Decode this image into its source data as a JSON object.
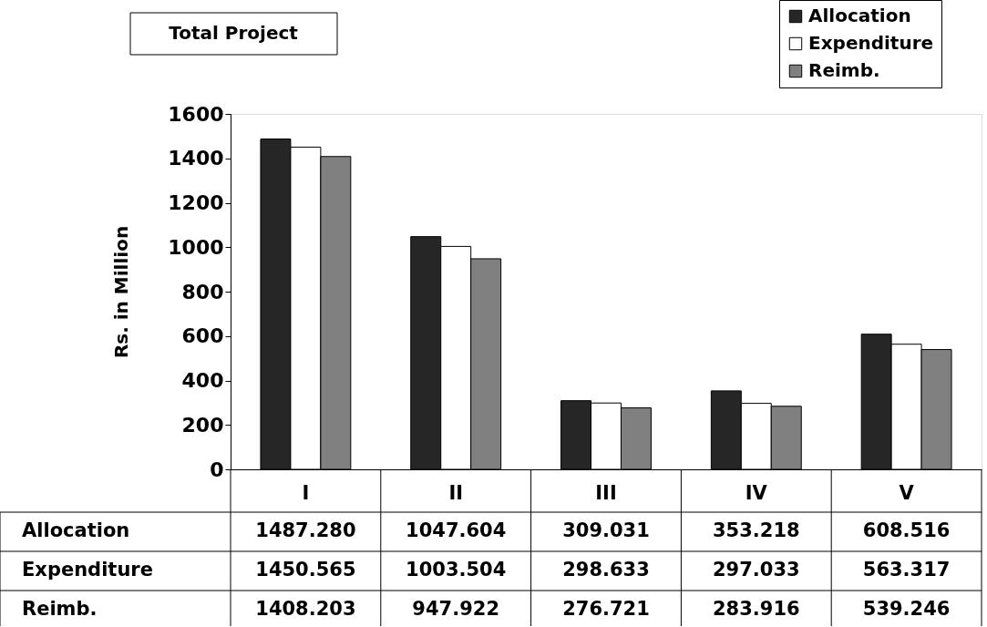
{
  "chart_data": {
    "type": "bar",
    "title": "Total Project",
    "ylabel": "Rs. in Million",
    "categories": [
      "I",
      "II",
      "III",
      "IV",
      "V"
    ],
    "series": [
      {
        "name": "Allocation",
        "color": "#262626",
        "values": [
          1487.28,
          1047.604,
          309.031,
          353.218,
          608.516
        ],
        "value_labels": [
          "1487.280",
          "1047.604",
          "309.031",
          "353.218",
          "608.516"
        ]
      },
      {
        "name": "Expenditure",
        "color": "#ffffff",
        "values": [
          1450.565,
          1003.504,
          298.633,
          297.033,
          563.317
        ],
        "value_labels": [
          "1450.565",
          "1003.504",
          "298.633",
          "297.033",
          "563.317"
        ]
      },
      {
        "name": "Reimb.",
        "color": "#808080",
        "values": [
          1408.203,
          947.922,
          276.721,
          283.916,
          539.246
        ],
        "value_labels": [
          "1408.203",
          "947.922",
          "276.721",
          "283.916",
          "539.246"
        ]
      }
    ],
    "ylim": [
      0,
      1600
    ],
    "yticks": [
      0,
      200,
      400,
      600,
      800,
      1000,
      1200,
      1400,
      1600
    ],
    "grid": false,
    "legend": "top right"
  }
}
